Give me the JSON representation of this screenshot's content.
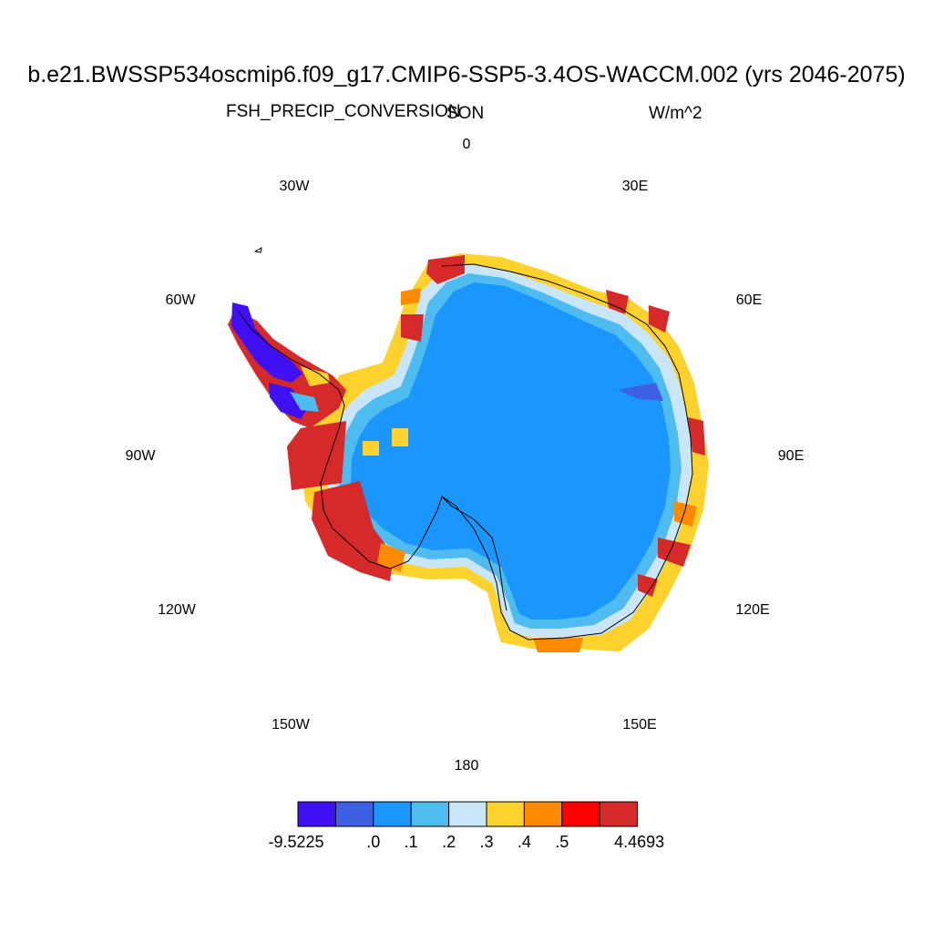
{
  "chart_data": {
    "type": "heatmap",
    "title": "b.e21.BWSSP534oscmip6.f09_g17.CMIP6-SSP5-3.4OS-WACCM.002 (yrs 2046-2075)",
    "variable": "FSH_PRECIP_CONVERSION",
    "season": "SON",
    "units": "W/m^2",
    "projection": "south-polar-stereographic",
    "longitude_labels": [
      "0",
      "30E",
      "60E",
      "90E",
      "120E",
      "150E",
      "180",
      "150W",
      "120W",
      "90W",
      "60W",
      "30W"
    ],
    "colorbar": {
      "labels": [
        "-9.5225",
        ".0",
        ".1",
        ".2",
        ".3",
        ".4",
        ".5",
        "4.4693"
      ],
      "colors": [
        "#3f10f2",
        "#3d60e2",
        "#1a96fc",
        "#4fbcf0",
        "#c8e6f8",
        "#fed22c",
        "#fe8a00",
        "#fe0000",
        "#d62a2a"
      ]
    }
  }
}
